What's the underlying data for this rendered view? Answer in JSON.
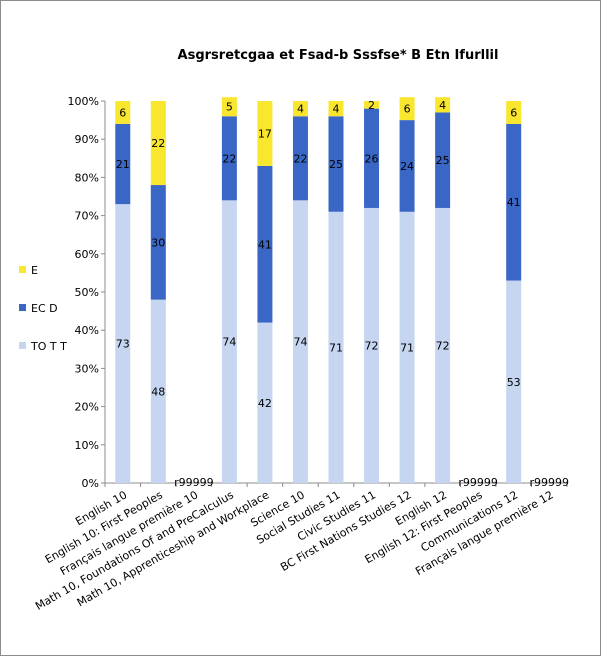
{
  "chart_data": {
    "type": "bar",
    "stacked": true,
    "percent": true,
    "title": "Asgrsretcgaa et Fsad-b Sssfse* B Etn Ifurllil",
    "ylim": [
      0,
      100
    ],
    "yticks": [
      "0%",
      "10%",
      "20%",
      "30%",
      "40%",
      "50%",
      "60%",
      "70%",
      "80%",
      "90%",
      "100%"
    ],
    "grid": false,
    "legend_position": "left",
    "categories": [
      "English 10",
      "English 10: First Peoples",
      "Français langue première 10",
      "Math 10, Foundations Of and PreCalculus",
      "Math 10, Apprenticeship and Workplace",
      "Science 10",
      "Social Studies 11",
      "Civic Studies 11",
      "BC First Nations Studies 12",
      "English 12",
      "English 12: First Peoples",
      "Communications 12",
      "Français langue première 12"
    ],
    "missing_label": "r99999",
    "missing": [
      false,
      false,
      true,
      false,
      false,
      false,
      false,
      false,
      false,
      false,
      true,
      false,
      true
    ],
    "series": [
      {
        "name": "TO T T",
        "color": "#c6d5f0",
        "values": [
          73,
          48,
          null,
          74,
          42,
          74,
          71,
          72,
          71,
          72,
          null,
          53,
          null
        ]
      },
      {
        "name": "EC D",
        "color": "#3a67c6",
        "values": [
          21,
          30,
          null,
          22,
          41,
          22,
          25,
          26,
          24,
          25,
          null,
          41,
          null
        ]
      },
      {
        "name": "E",
        "color": "#f9e62e",
        "values": [
          6,
          22,
          null,
          5,
          17,
          4,
          4,
          2,
          6,
          4,
          null,
          6,
          null
        ]
      }
    ]
  }
}
